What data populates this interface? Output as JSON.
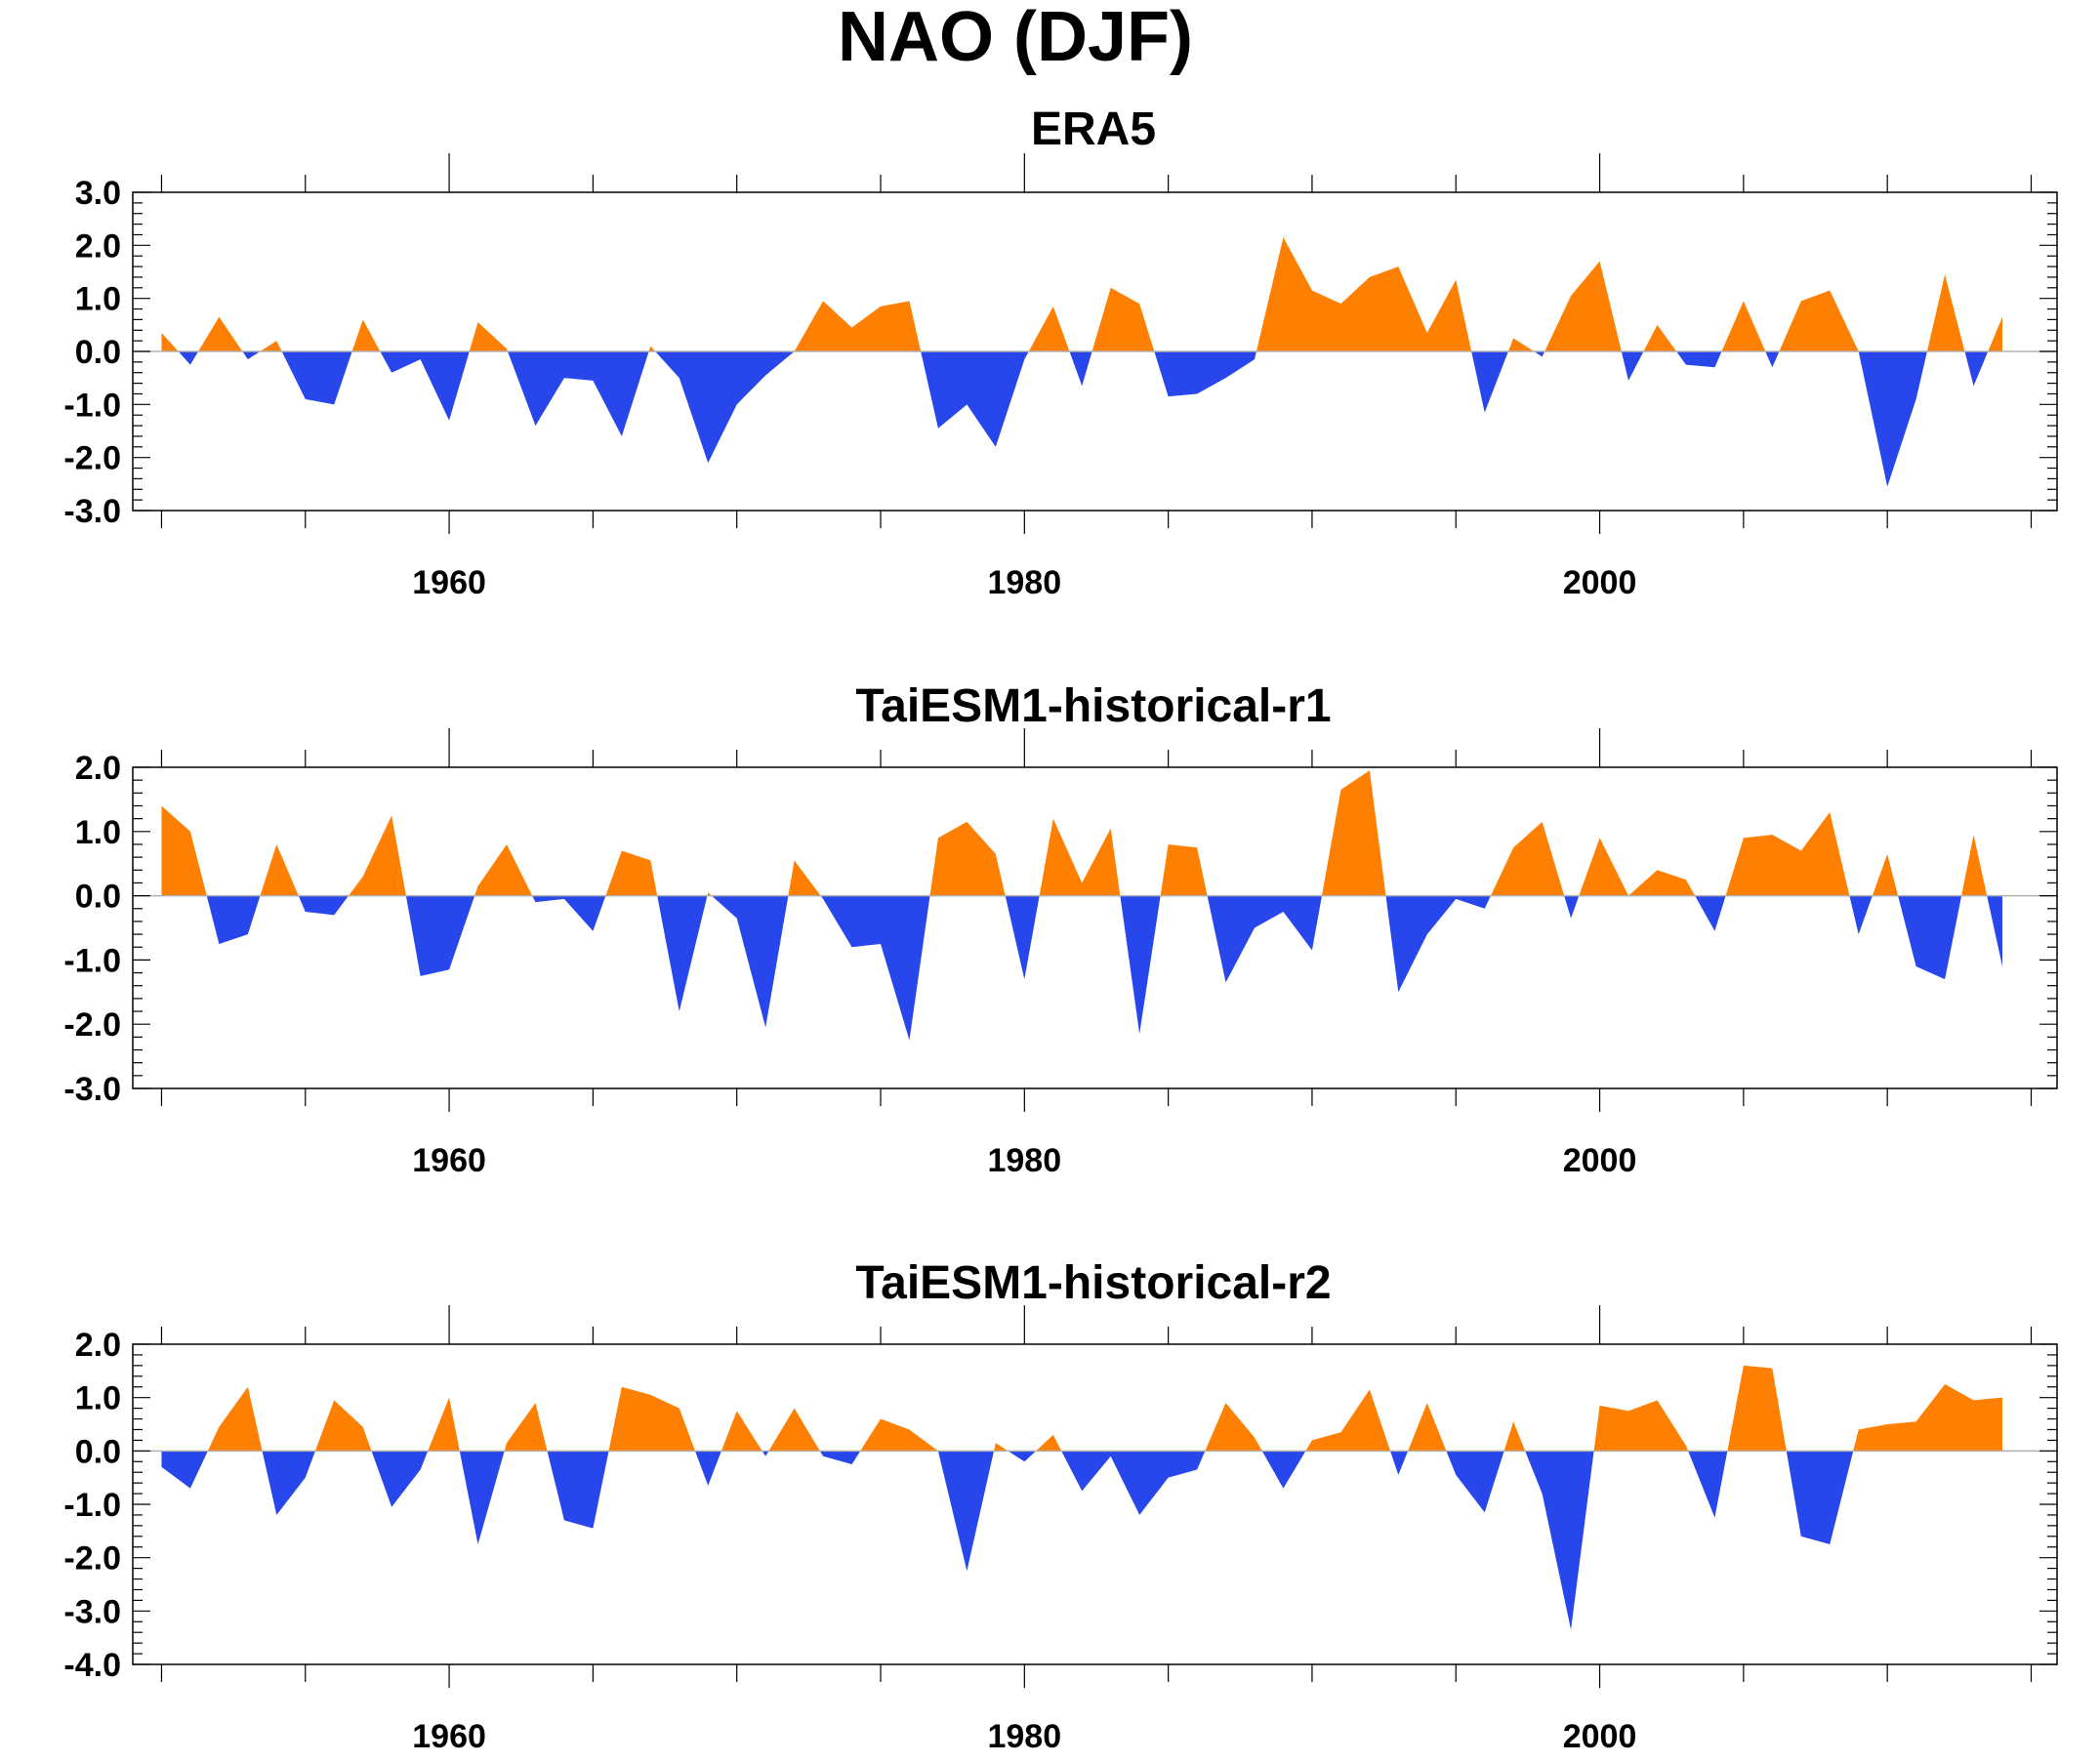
{
  "title": "NAO (DJF)",
  "colors": {
    "positive": "#ff8000",
    "negative": "#2746ec",
    "axis": "#000000",
    "zero_line": "#b0b0b0"
  },
  "chart_data": [
    {
      "type": "area",
      "title": "ERA5",
      "xlabel": "",
      "ylabel": "",
      "xlim": [
        1949,
        2015.9
      ],
      "ylim": [
        -3.0,
        3.0
      ],
      "yticks": [
        "3.0",
        "2.0",
        "1.0",
        "0.0",
        "-1.0",
        "-2.0",
        "-3.0"
      ],
      "ytick_values": [
        3,
        2,
        1,
        0,
        -1,
        -2,
        -3
      ],
      "xticks": [
        "1960",
        "1980",
        "2000"
      ],
      "xtick_values": [
        1960,
        1980,
        2000
      ],
      "grid": false,
      "legend": "none",
      "x": [
        1950,
        1951,
        1952,
        1953,
        1954,
        1955,
        1956,
        1957,
        1958,
        1959,
        1960,
        1961,
        1962,
        1963,
        1964,
        1965,
        1966,
        1967,
        1968,
        1969,
        1970,
        1971,
        1972,
        1973,
        1974,
        1975,
        1976,
        1977,
        1978,
        1979,
        1980,
        1981,
        1982,
        1983,
        1984,
        1985,
        1986,
        1987,
        1988,
        1989,
        1990,
        1991,
        1992,
        1993,
        1994,
        1995,
        1996,
        1997,
        1998,
        1999,
        2000,
        2001,
        2002,
        2003,
        2004,
        2005,
        2006,
        2007,
        2008,
        2009,
        2010,
        2011,
        2012,
        2013,
        2014
      ],
      "values": [
        0.35,
        -0.25,
        0.65,
        -0.15,
        0.2,
        -0.9,
        -1.0,
        0.6,
        -0.4,
        -0.15,
        -1.3,
        0.55,
        0.05,
        -1.4,
        -0.5,
        -0.55,
        -1.6,
        0.1,
        -0.5,
        -2.1,
        -1.0,
        -0.45,
        0.0,
        0.95,
        0.45,
        0.85,
        0.95,
        -1.45,
        -1.0,
        -1.8,
        -0.15,
        0.85,
        -0.65,
        1.2,
        0.9,
        -0.85,
        -0.8,
        -0.5,
        -0.15,
        2.15,
        1.15,
        0.9,
        1.4,
        1.6,
        0.35,
        1.35,
        -1.15,
        0.25,
        -0.1,
        1.05,
        1.7,
        -0.55,
        0.5,
        -0.25,
        -0.3,
        0.95,
        -0.3,
        0.95,
        1.15,
        0.0,
        -2.55,
        -0.9,
        1.45,
        -0.65,
        0.65
      ]
    },
    {
      "type": "area",
      "title": "TaiESM1-historical-r1",
      "xlabel": "",
      "ylabel": "",
      "xlim": [
        1949,
        2015.9
      ],
      "ylim": [
        -3.0,
        2.0
      ],
      "yticks": [
        "2.0",
        "1.0",
        "0.0",
        "-1.0",
        "-2.0",
        "-3.0"
      ],
      "ytick_values": [
        2,
        1,
        0,
        -1,
        -2,
        -3
      ],
      "xticks": [
        "1960",
        "1980",
        "2000"
      ],
      "xtick_values": [
        1960,
        1980,
        2000
      ],
      "grid": false,
      "legend": "none",
      "x": [
        1950,
        1951,
        1952,
        1953,
        1954,
        1955,
        1956,
        1957,
        1958,
        1959,
        1960,
        1961,
        1962,
        1963,
        1964,
        1965,
        1966,
        1967,
        1968,
        1969,
        1970,
        1971,
        1972,
        1973,
        1974,
        1975,
        1976,
        1977,
        1978,
        1979,
        1980,
        1981,
        1982,
        1983,
        1984,
        1985,
        1986,
        1987,
        1988,
        1989,
        1990,
        1991,
        1992,
        1993,
        1994,
        1995,
        1996,
        1997,
        1998,
        1999,
        2000,
        2001,
        2002,
        2003,
        2004,
        2005,
        2006,
        2007,
        2008,
        2009,
        2010,
        2011,
        2012,
        2013,
        2014
      ],
      "values": [
        1.4,
        1.0,
        -0.75,
        -0.6,
        0.8,
        -0.25,
        -0.3,
        0.3,
        1.25,
        -1.25,
        -1.15,
        0.15,
        0.8,
        -0.1,
        -0.05,
        -0.55,
        0.7,
        0.55,
        -1.8,
        0.05,
        -0.35,
        -2.05,
        0.55,
        -0.05,
        -0.8,
        -0.75,
        -2.25,
        0.9,
        1.15,
        0.65,
        -1.3,
        1.2,
        0.2,
        1.05,
        -2.15,
        0.8,
        0.75,
        -1.35,
        -0.5,
        -0.25,
        -0.85,
        1.65,
        1.95,
        -1.5,
        -0.6,
        -0.05,
        -0.2,
        0.75,
        1.15,
        -0.35,
        0.9,
        0.0,
        0.4,
        0.25,
        -0.55,
        0.9,
        0.95,
        0.7,
        1.3,
        -0.6,
        0.65,
        -1.1,
        -1.3,
        0.95,
        -1.1
      ]
    },
    {
      "type": "area",
      "title": "TaiESM1-historical-r2",
      "xlabel": "",
      "ylabel": "",
      "xlim": [
        1949,
        2015.9
      ],
      "ylim": [
        -4.0,
        2.0
      ],
      "yticks": [
        "2.0",
        "1.0",
        "0.0",
        "-1.0",
        "-2.0",
        "-3.0",
        "-4.0"
      ],
      "ytick_values": [
        2,
        1,
        0,
        -1,
        -2,
        -3,
        -4
      ],
      "xticks": [
        "1960",
        "1980",
        "2000"
      ],
      "xtick_values": [
        1960,
        1980,
        2000
      ],
      "grid": false,
      "legend": "none",
      "x": [
        1950,
        1951,
        1952,
        1953,
        1954,
        1955,
        1956,
        1957,
        1958,
        1959,
        1960,
        1961,
        1962,
        1963,
        1964,
        1965,
        1966,
        1967,
        1968,
        1969,
        1970,
        1971,
        1972,
        1973,
        1974,
        1975,
        1976,
        1977,
        1978,
        1979,
        1980,
        1981,
        1982,
        1983,
        1984,
        1985,
        1986,
        1987,
        1988,
        1989,
        1990,
        1991,
        1992,
        1993,
        1994,
        1995,
        1996,
        1997,
        1998,
        1999,
        2000,
        2001,
        2002,
        2003,
        2004,
        2005,
        2006,
        2007,
        2008,
        2009,
        2010,
        2011,
        2012,
        2013,
        2014
      ],
      "values": [
        -0.3,
        -0.7,
        0.45,
        1.2,
        -1.2,
        -0.5,
        0.95,
        0.45,
        -1.05,
        -0.35,
        1.0,
        -1.75,
        0.15,
        0.9,
        -1.3,
        -1.45,
        1.2,
        1.05,
        0.8,
        -0.65,
        0.75,
        -0.1,
        0.8,
        -0.1,
        -0.25,
        0.6,
        0.4,
        0.0,
        -2.25,
        0.15,
        -0.2,
        0.3,
        -0.75,
        -0.1,
        -1.2,
        -0.5,
        -0.35,
        0.9,
        0.25,
        -0.7,
        0.2,
        0.35,
        1.15,
        -0.45,
        0.9,
        -0.45,
        -1.15,
        0.55,
        -0.8,
        -3.35,
        0.85,
        0.75,
        0.95,
        0.1,
        -1.25,
        1.6,
        1.55,
        -1.6,
        -1.75,
        0.4,
        0.5,
        0.55,
        1.25,
        0.95,
        1.0
      ]
    }
  ]
}
